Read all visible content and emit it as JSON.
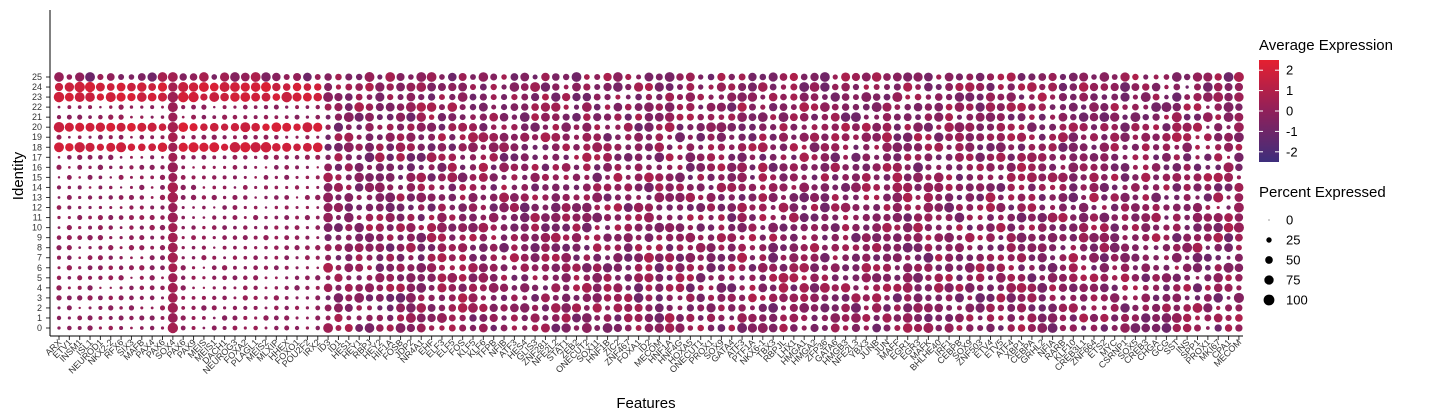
{
  "chart_data": {
    "type": "dot",
    "xlabel": "Features",
    "ylabel": "Identity",
    "features": [
      "ARX",
      "ETV1",
      "INSM1",
      "ISL1",
      "NEUROD1",
      "NKX2-2",
      "RFX6",
      "SIX3",
      "MAFB",
      "PAX4",
      "PAX6",
      "SOX4",
      "PAX6",
      "PAX9",
      "MEIS",
      "MEIS1",
      "DACH1",
      "NEUROG3",
      "FOXA2",
      "PLAGL1",
      "MEIS2",
      "MLXIP",
      "HHEX",
      "FOXO1",
      "POU2F2",
      "IRX2",
      "ID3",
      "ID1",
      "HES1",
      "HEY1",
      "RBPJ",
      "HEY2",
      "HIF1A",
      "FOSB",
      "JDP2",
      "NR4A1",
      "EHF",
      "ELF3",
      "ELF5",
      "FOS",
      "KLF5",
      "KLF6",
      "TFPB",
      "NFIB",
      "ATF3",
      "HES4",
      "GLIS3",
      "ZNF281",
      "NFE2L2",
      "STAT1",
      "ZEB2",
      "ONECUT2",
      "SOX11",
      "HNF1B",
      "ZIC2",
      "ZNF467",
      "FOXA1",
      "ID2",
      "MECOM",
      "HNF1A",
      "HNF4G",
      "HOXA5",
      "ONECUT1",
      "PROX1",
      "SOX9",
      "GATA4",
      "ATF3",
      "PTF1A",
      "NKX6-1",
      "TBX3",
      "RBPJL",
      "LHX1",
      "HMGA1",
      "HMGA2",
      "ZFP36",
      "GATA6",
      "HMGB3",
      "NFE2L3",
      "YBX3",
      "JUNB",
      "JUN",
      "MAFF",
      "EGR1",
      "EGR3",
      "MAFK",
      "BHLHE40",
      "IRF1",
      "CEBPB",
      "SOX9",
      "ZNF503",
      "ETV4",
      "ETV5",
      "ATF4",
      "XBP1",
      "CEBPA",
      "GRHL2",
      "NFIA",
      "RARB",
      "KLF10",
      "CREB3L1",
      "ZNF664",
      "ETS2",
      "MYC",
      "CSRNP1",
      "SOX5",
      "CREB3",
      "CHGA",
      "GCG",
      "SST",
      "INS",
      "SPP1",
      "PROX1",
      "MKI67",
      "CPA1",
      "MECOM"
    ],
    "identities": [
      "0",
      "1",
      "2",
      "3",
      "4",
      "5",
      "6",
      "7",
      "8",
      "9",
      "10",
      "11",
      "12",
      "13",
      "14",
      "15",
      "16",
      "17",
      "18",
      "19",
      "20",
      "21",
      "22",
      "23",
      "24",
      "25"
    ],
    "color_scale": {
      "low": "#3d2e7c",
      "mid": "#90205a",
      "high": "#e52030",
      "domain": [
        -2.5,
        2.5
      ]
    },
    "legend": {
      "color_title": "Average Expression",
      "color_ticks": [
        "2",
        "1",
        "0",
        "-1",
        "-2"
      ],
      "size_title": "Percent Expressed",
      "size_ticks": [
        "0",
        "25",
        "50",
        "75",
        "100"
      ]
    }
  }
}
